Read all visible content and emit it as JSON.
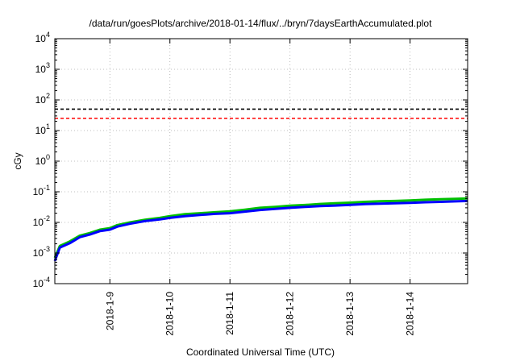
{
  "chart_data": {
    "type": "line",
    "title": "/data/run/goesPlots/archive/2018-01-14/flux/../bryn/7daysEarthAccumulated.plot",
    "xlabel": "Coordinated Universal Time (UTC)",
    "ylabel": "cGy",
    "yscale": "log",
    "ylim": [
      0.0001,
      10000
    ],
    "xlim": [
      "2018-01-08T02:00",
      "2018-01-14T23:00"
    ],
    "x_ticks": [
      "2018-1-9",
      "2018-1-10",
      "2018-1-11",
      "2018-1-12",
      "2018-1-13",
      "2018-1-14"
    ],
    "y_ticks": [
      {
        "base": "10",
        "exp": "-4",
        "value": 0.0001
      },
      {
        "base": "10",
        "exp": "-3",
        "value": 0.001
      },
      {
        "base": "10",
        "exp": "-2",
        "value": 0.01
      },
      {
        "base": "10",
        "exp": "-1",
        "value": 0.1
      },
      {
        "base": "10",
        "exp": "0",
        "value": 1
      },
      {
        "base": "10",
        "exp": "1",
        "value": 10
      },
      {
        "base": "10",
        "exp": "2",
        "value": 100
      },
      {
        "base": "10",
        "exp": "3",
        "value": 1000
      },
      {
        "base": "10",
        "exp": "4",
        "value": 10000
      }
    ],
    "grid": true,
    "thresholds": [
      {
        "value": 50,
        "color": "#000000",
        "style": "dashed"
      },
      {
        "value": 25,
        "color": "#ff0000",
        "style": "dashed"
      }
    ],
    "series": [
      {
        "color": "#00c000",
        "points": [
          [
            "2018-01-08T02:00",
            0.0007
          ],
          [
            "2018-01-08T04:00",
            0.0017
          ],
          [
            "2018-01-08T08:00",
            0.0024
          ],
          [
            "2018-01-08T12:00",
            0.0037
          ],
          [
            "2018-01-08T16:00",
            0.0045
          ],
          [
            "2018-01-08T20:00",
            0.0058
          ],
          [
            "2018-01-09T00:00",
            0.0065
          ],
          [
            "2018-01-09T03:00",
            0.0082
          ],
          [
            "2018-01-09T08:00",
            0.01
          ],
          [
            "2018-01-09T14:00",
            0.0122
          ],
          [
            "2018-01-09T20:00",
            0.014
          ],
          [
            "2018-01-10T00:00",
            0.016
          ],
          [
            "2018-01-10T06:00",
            0.0185
          ],
          [
            "2018-01-10T12:00",
            0.02
          ],
          [
            "2018-01-10T18:00",
            0.0215
          ],
          [
            "2018-01-11T00:00",
            0.023
          ],
          [
            "2018-01-11T06:00",
            0.026
          ],
          [
            "2018-01-11T12:00",
            0.03
          ],
          [
            "2018-01-11T18:00",
            0.032
          ],
          [
            "2018-01-12T00:00",
            0.035
          ],
          [
            "2018-01-12T06:00",
            0.037
          ],
          [
            "2018-01-12T12:00",
            0.04
          ],
          [
            "2018-01-12T18:00",
            0.042
          ],
          [
            "2018-01-13T00:00",
            0.044
          ],
          [
            "2018-01-13T06:00",
            0.047
          ],
          [
            "2018-01-13T12:00",
            0.049
          ],
          [
            "2018-01-13T18:00",
            0.05
          ],
          [
            "2018-01-14T00:00",
            0.052
          ],
          [
            "2018-01-14T06:00",
            0.055
          ],
          [
            "2018-01-14T12:00",
            0.057
          ],
          [
            "2018-01-14T18:00",
            0.059
          ],
          [
            "2018-01-14T23:00",
            0.061
          ]
        ]
      },
      {
        "color": "#0000ff",
        "points": [
          [
            "2018-01-08T02:00",
            0.00055
          ],
          [
            "2018-01-08T04:00",
            0.0015
          ],
          [
            "2018-01-08T08:00",
            0.0021
          ],
          [
            "2018-01-08T12:00",
            0.0033
          ],
          [
            "2018-01-08T16:00",
            0.004
          ],
          [
            "2018-01-08T20:00",
            0.0052
          ],
          [
            "2018-01-09T00:00",
            0.0058
          ],
          [
            "2018-01-09T03:00",
            0.0073
          ],
          [
            "2018-01-09T08:00",
            0.009
          ],
          [
            "2018-01-09T14:00",
            0.011
          ],
          [
            "2018-01-09T20:00",
            0.0125
          ],
          [
            "2018-01-10T00:00",
            0.014
          ],
          [
            "2018-01-10T06:00",
            0.016
          ],
          [
            "2018-01-10T12:00",
            0.0175
          ],
          [
            "2018-01-10T18:00",
            0.019
          ],
          [
            "2018-01-11T00:00",
            0.02
          ],
          [
            "2018-01-11T06:00",
            0.0225
          ],
          [
            "2018-01-11T12:00",
            0.0255
          ],
          [
            "2018-01-11T18:00",
            0.0275
          ],
          [
            "2018-01-12T00:00",
            0.03
          ],
          [
            "2018-01-12T06:00",
            0.032
          ],
          [
            "2018-01-12T12:00",
            0.034
          ],
          [
            "2018-01-12T18:00",
            0.0355
          ],
          [
            "2018-01-13T00:00",
            0.0375
          ],
          [
            "2018-01-13T06:00",
            0.0395
          ],
          [
            "2018-01-13T12:00",
            0.041
          ],
          [
            "2018-01-13T18:00",
            0.042
          ],
          [
            "2018-01-14T00:00",
            0.0435
          ],
          [
            "2018-01-14T06:00",
            0.0455
          ],
          [
            "2018-01-14T12:00",
            0.047
          ],
          [
            "2018-01-14T18:00",
            0.0485
          ],
          [
            "2018-01-14T23:00",
            0.05
          ]
        ]
      }
    ]
  }
}
